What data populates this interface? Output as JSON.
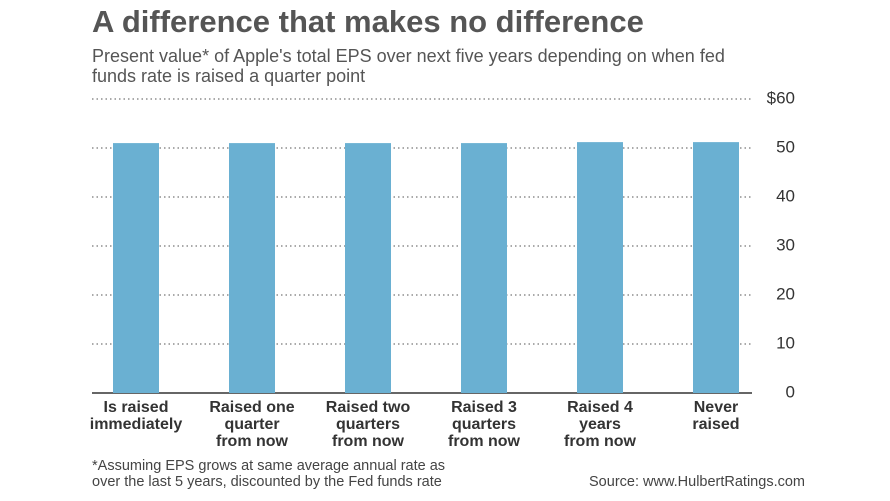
{
  "chart_data": {
    "type": "bar",
    "title": "A difference that makes no difference",
    "subtitle_lines": [
      "Present value* of Apple's total EPS over next five years depending on when fed",
      "funds rate is raised a quarter point"
    ],
    "categories": [
      "Is raised\nimmediately",
      "Raised one\nquarter\nfrom now",
      "Raised two\nquarters\nfrom now",
      "Raised 3\nquarters\nfrom now",
      "Raised 4\nyears\nfrom now",
      "Never\nraised"
    ],
    "values": [
      51,
      51,
      51,
      51,
      51.2,
      51.2
    ],
    "color": "#6ab0d2",
    "ylim": [
      0,
      60
    ],
    "yticks": [
      0,
      10,
      20,
      30,
      40,
      50,
      {
        "value": 60,
        "label": "$60"
      }
    ],
    "grid": true,
    "y_axis_side": "right",
    "footnote_lines": [
      "*Assuming EPS grows at same average annual rate as",
      "over the last 5 years, discounted by the Fed funds rate"
    ],
    "source": "Source: www.HulbertRatings.com"
  }
}
